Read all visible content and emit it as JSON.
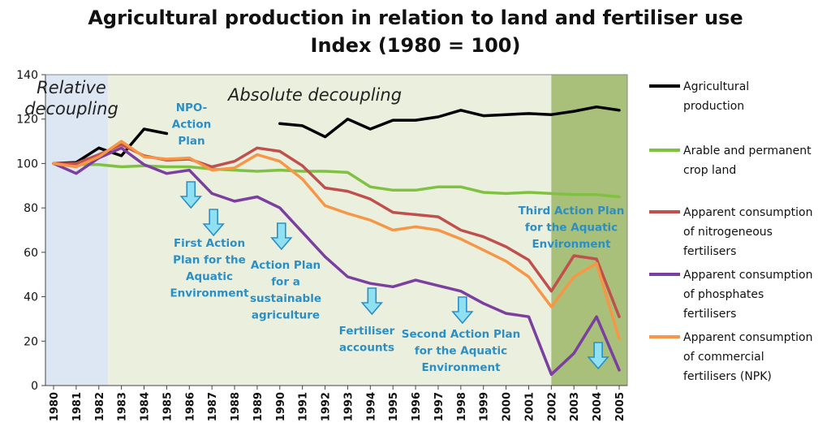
{
  "chart_data": {
    "type": "line",
    "title": "Agricultural production in relation to land and fertiliser use",
    "subtitle": "Index (1980 = 100)",
    "xlabel": "",
    "ylabel": "",
    "ylim": [
      0,
      140
    ],
    "yticks": [
      0,
      20,
      40,
      60,
      80,
      100,
      120,
      140
    ],
    "x": [
      1980,
      1981,
      1982,
      1983,
      1984,
      1985,
      1986,
      1987,
      1988,
      1989,
      1990,
      1991,
      1992,
      1993,
      1994,
      1995,
      1996,
      1997,
      1998,
      1999,
      2000,
      2001,
      2002,
      2003,
      2004,
      2005
    ],
    "x_labels": [
      "1980",
      "1981",
      "1982",
      "1983",
      "1984",
      "1985",
      "1986",
      "1987",
      "1988",
      "1989",
      "1990",
      "1991",
      "1992",
      "1993",
      "1994",
      "1995",
      "1996",
      "1997",
      "1998",
      "1999",
      "2000",
      "2001",
      "2002",
      "2003",
      "2004",
      "2005"
    ],
    "grid": false,
    "legend_position": "right",
    "regions": [
      {
        "name": "relative",
        "label_lines": [
          "Relative",
          "decoupling"
        ],
        "from": 1980,
        "to": 1982.4,
        "color": "#dde6f3"
      },
      {
        "name": "absolute",
        "label_lines": [
          "Absolute decoupling"
        ],
        "from": 1982.4,
        "to": 2002,
        "color": "#ebf0de"
      },
      {
        "name": "recent",
        "label_lines": [],
        "from": 2002,
        "to": 2005.4,
        "color": "#a8c07a"
      }
    ],
    "series": [
      {
        "name": "Agricultural production",
        "legend_lines": [
          "Agricultural",
          "production"
        ],
        "color": "#000000",
        "values": [
          100,
          100.5,
          107,
          103.5,
          115.5,
          113.5,
          null,
          null,
          null,
          null,
          118,
          117,
          112,
          120,
          115.5,
          119.5,
          119.5,
          121,
          124,
          121.5,
          122,
          122.5,
          122,
          123.5,
          125.5,
          124
        ]
      },
      {
        "name": "Arable and permanent crop land",
        "legend_lines": [
          "Arable and permanent",
          "crop land"
        ],
        "color": "#7fc241",
        "values": [
          100,
          99.5,
          99.5,
          98.5,
          99,
          98.5,
          98.5,
          97.5,
          97,
          96.5,
          97,
          96.5,
          96.5,
          96,
          89.5,
          88,
          88,
          89.5,
          89.5,
          87,
          86.5,
          87,
          86.5,
          86,
          86,
          85
        ]
      },
      {
        "name": "Apparent consumption of nitrogeneous fertilisers",
        "legend_lines": [
          "Apparent consumption",
          "of nitrogeneous",
          "fertilisers"
        ],
        "color": "#c0504d",
        "values": [
          100,
          100,
          104,
          108.5,
          103.5,
          101.5,
          102,
          98.5,
          101,
          107,
          105.5,
          99,
          89,
          87.5,
          84,
          78,
          77,
          76,
          70,
          67,
          62.5,
          56.5,
          42.5,
          58.5,
          57,
          31
        ]
      },
      {
        "name": "Apparent consumption of phosphates fertilisers",
        "legend_lines": [
          "Apparent consumption",
          "of phosphates",
          "fertilisers"
        ],
        "color": "#7b3fa0",
        "values": [
          100,
          95.5,
          102.5,
          107,
          99.5,
          95.5,
          97,
          86.5,
          83,
          85,
          80,
          69,
          58,
          49,
          46,
          44.5,
          47.5,
          45,
          42.5,
          37,
          32.5,
          31,
          5,
          14.5,
          31,
          7
        ]
      },
      {
        "name": "Apparent consumption of commercial fertilisers (NPK)",
        "legend_lines": [
          "Apparent consumption",
          "of commercial",
          "fertilisers (NPK)"
        ],
        "color": "#f79646",
        "values": [
          100,
          98.5,
          103,
          110,
          103,
          102,
          102.5,
          97,
          98,
          104,
          101,
          93,
          81,
          77.5,
          74.5,
          70,
          71.5,
          70,
          66,
          61,
          56,
          49,
          35.5,
          49,
          55,
          21
        ]
      }
    ],
    "annotations": [
      {
        "name": "npo-action-plan",
        "lines": [
          "NPO-",
          "Action",
          "Plan"
        ],
        "year": 1986
      },
      {
        "name": "first-action-plan",
        "lines": [
          "First Action",
          "Plan for the",
          "Aquatic",
          "Environment"
        ],
        "year": 1987
      },
      {
        "name": "action-plan-sustainable",
        "lines": [
          "Action Plan",
          "for a",
          "sustainable",
          "agriculture"
        ],
        "year": 1991
      },
      {
        "name": "fertiliser-accounts",
        "lines": [
          "Fertiliser",
          "accounts"
        ],
        "year": 1994
      },
      {
        "name": "second-action-plan",
        "lines": [
          "Second Action Plan",
          "for the Aquatic",
          "Environment"
        ],
        "year": 1998
      },
      {
        "name": "third-action-plan",
        "lines": [
          "Third Action Plan",
          "for the Aquatic",
          "Environment"
        ],
        "year": 2004
      }
    ],
    "arrows": [
      1986,
      1987,
      1990,
      1994,
      1998,
      2004
    ]
  }
}
